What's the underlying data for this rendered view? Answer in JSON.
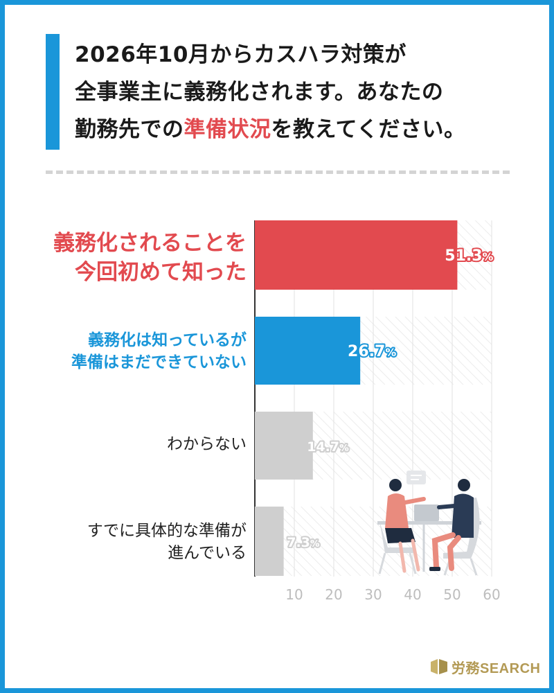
{
  "title": {
    "line1": "2026年10月からカスハラ対策が",
    "line2": "全事業主に義務化されます。あなたの",
    "line3_pre": "勤務先での",
    "line3_highlight": "準備状況",
    "line3_post": "を教えてください。"
  },
  "chart_data": {
    "type": "bar",
    "orientation": "horizontal",
    "categories": [
      "義務化されることを\n今回初めて知った",
      "義務化は知っているが\n準備はまだできていない",
      "わからない",
      "すでに具体的な準備が\n進んでいる"
    ],
    "values": [
      51.3,
      26.7,
      14.7,
      7.3
    ],
    "value_labels": [
      "51.3%",
      "26.7%",
      "14.7%",
      "7.3%"
    ],
    "xticks": [
      "10",
      "20",
      "30",
      "40",
      "50",
      "60"
    ],
    "xlim": [
      0,
      60
    ],
    "grid": true,
    "colors": [
      "#e24a4f",
      "#1a96d9",
      "#cfcfcf",
      "#cfcfcf"
    ]
  },
  "labels": {
    "cat0_line1": "義務化されることを",
    "cat0_line2": "今回初めて知った",
    "cat1_line1": "義務化は知っているが",
    "cat1_line2": "準備はまだできていない",
    "cat2_line1": "わからない",
    "cat3_line1": "すでに具体的な準備が",
    "cat3_line2": "進んでいる"
  },
  "logo": {
    "kanji": "労務",
    "latin": "SEARCH"
  }
}
